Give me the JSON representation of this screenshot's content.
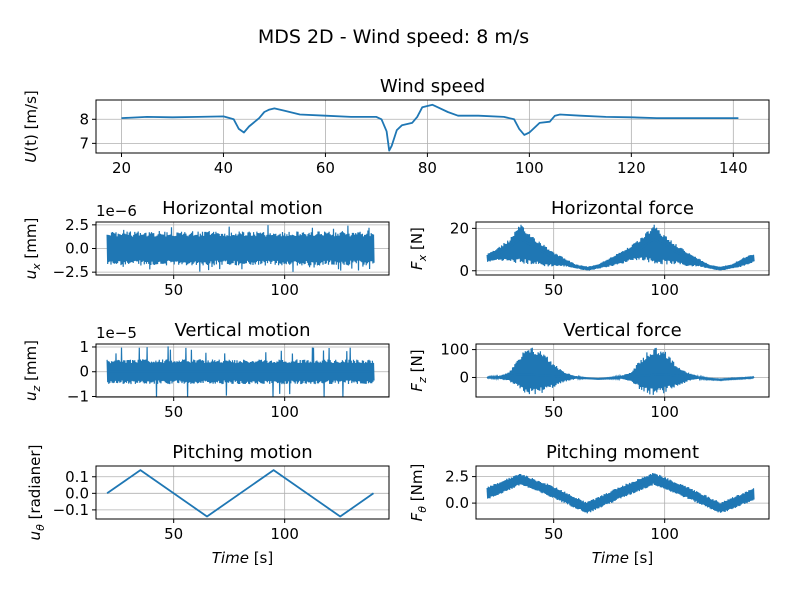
{
  "suptitle": "MDS 2D - Wind speed: 8 m/s",
  "colors": {
    "line": "#1f77b4",
    "grid": "#b0b0b0"
  },
  "chart_data": [
    {
      "id": "wind",
      "type": "line",
      "title": "Wind speed",
      "ylabel": "U(t) [m/s]",
      "xlabel": "",
      "xlim": [
        15,
        147
      ],
      "ylim": [
        6.6,
        8.8
      ],
      "xticks": [
        20,
        40,
        60,
        80,
        100,
        120,
        140
      ],
      "yticks": [
        7,
        8
      ],
      "ytick_labels": [
        "7",
        "8"
      ],
      "grid": true,
      "series": [
        {
          "x": [
            20,
            25,
            30,
            35,
            40,
            42,
            43,
            44,
            45,
            47,
            48,
            49,
            50,
            52,
            55,
            60,
            65,
            68,
            70,
            71,
            72,
            72.5,
            73,
            74,
            75,
            77,
            78,
            79,
            80,
            81,
            82,
            84,
            86,
            90,
            95,
            97,
            98,
            99,
            100,
            102,
            104,
            105,
            106,
            110,
            115,
            120,
            125,
            130,
            135,
            141
          ],
          "y": [
            8.05,
            8.1,
            8.08,
            8.1,
            8.12,
            8.0,
            7.6,
            7.45,
            7.7,
            8.05,
            8.3,
            8.4,
            8.45,
            8.35,
            8.2,
            8.15,
            8.1,
            8.1,
            8.1,
            8.0,
            7.5,
            6.7,
            6.9,
            7.55,
            7.75,
            7.85,
            8.1,
            8.5,
            8.55,
            8.6,
            8.5,
            8.3,
            8.15,
            8.15,
            8.1,
            8.0,
            7.6,
            7.35,
            7.45,
            7.85,
            7.9,
            8.15,
            8.2,
            8.15,
            8.1,
            8.08,
            8.05,
            8.05,
            8.05,
            8.05
          ]
        }
      ]
    },
    {
      "id": "ux",
      "type": "line",
      "title": "Horizontal motion",
      "ylabel": "u_x [mm]",
      "xlabel": "",
      "offset_text": "1e−6",
      "xlim": [
        15,
        147
      ],
      "ylim": [
        -2.8,
        2.8
      ],
      "xticks": [
        50,
        100
      ],
      "yticks": [
        -2.5,
        0,
        2.5
      ],
      "ytick_labels": [
        "−2.5",
        "0.0",
        "2.5"
      ],
      "grid": true,
      "series": [
        {
          "x": [
            20,
            140
          ],
          "y": [
            0,
            0
          ],
          "band": {
            "lower": [
              -1.8,
              -1.8
            ],
            "upper": [
              1.8,
              1.8
            ],
            "spike": 2.5,
            "n": 240
          }
        }
      ]
    },
    {
      "id": "fx",
      "type": "line",
      "title": "Horizontal force",
      "ylabel": "F_x [N]",
      "xlabel": "",
      "xlim": [
        15,
        147
      ],
      "ylim": [
        -2,
        23
      ],
      "xticks": [
        50,
        100
      ],
      "yticks": [
        0,
        20
      ],
      "ytick_labels": [
        "0",
        "20"
      ],
      "grid": true,
      "series": [
        {
          "x": [
            20,
            25,
            30,
            35,
            40,
            45,
            50,
            55,
            60,
            65,
            70,
            75,
            80,
            85,
            90,
            95,
            100,
            105,
            110,
            115,
            120,
            125,
            130,
            135,
            140
          ],
          "y": [
            6,
            8,
            11,
            15,
            12,
            9,
            6,
            4,
            2,
            1,
            2,
            4,
            6,
            8,
            11,
            15,
            12,
            9,
            6,
            4,
            2,
            1,
            2,
            4,
            6
          ],
          "band": {
            "lower": [
              4,
              5,
              4,
              3,
              3,
              2,
              2,
              2,
              1,
              0,
              1,
              2,
              3,
              5,
              5,
              3,
              3,
              3,
              2,
              2,
              1,
              0,
              1,
              2,
              4
            ],
            "upper": [
              8,
              11,
              15,
              22,
              17,
              13,
              9,
              6,
              3,
              2,
              3,
              6,
              9,
              12,
              16,
              22,
              17,
              13,
              9,
              6,
              3,
              2,
              3,
              6,
              8
            ],
            "n": 220
          }
        }
      ]
    },
    {
      "id": "uz",
      "type": "line",
      "title": "Vertical motion",
      "ylabel": "u_z [mm]",
      "xlabel": "",
      "offset_text": "1e−5",
      "xlim": [
        15,
        147
      ],
      "ylim": [
        -1.02,
        1.12
      ],
      "xticks": [
        50,
        100
      ],
      "yticks": [
        -1,
        0,
        1
      ],
      "ytick_labels": [
        "−1",
        "0",
        "1"
      ],
      "grid": true,
      "series": [
        {
          "x": [
            20,
            140
          ],
          "y": [
            0,
            0
          ],
          "band": {
            "lower": [
              -0.5,
              -0.5
            ],
            "upper": [
              0.5,
              0.5
            ],
            "spike": 1.05,
            "n": 240
          }
        }
      ]
    },
    {
      "id": "fz",
      "type": "line",
      "title": "Vertical force",
      "ylabel": "F_z [N]",
      "xlabel": "",
      "xlim": [
        15,
        147
      ],
      "ylim": [
        -70,
        120
      ],
      "xticks": [
        50,
        100
      ],
      "yticks": [
        0,
        100
      ],
      "ytick_labels": [
        "0",
        "100"
      ],
      "grid": true,
      "series": [
        {
          "x": [
            20,
            25,
            30,
            33,
            36,
            40,
            45,
            50,
            55,
            60,
            65,
            70,
            75,
            80,
            85,
            88,
            92,
            96,
            100,
            105,
            110,
            115,
            120,
            125,
            130,
            135,
            140
          ],
          "y": [
            0,
            0,
            5,
            10,
            10,
            10,
            8,
            5,
            3,
            0,
            -3,
            -5,
            -3,
            0,
            3,
            5,
            8,
            10,
            10,
            8,
            3,
            0,
            -5,
            -8,
            -5,
            -3,
            0
          ],
          "band": {
            "lower": [
              -2,
              -5,
              -15,
              -35,
              -55,
              -65,
              -55,
              -35,
              -15,
              -5,
              -4,
              -6,
              -5,
              -5,
              -15,
              -40,
              -60,
              -65,
              -55,
              -35,
              -15,
              -5,
              -8,
              -10,
              -7,
              -5,
              -2
            ],
            "upper": [
              2,
              5,
              20,
              55,
              90,
              110,
              95,
              50,
              20,
              5,
              -2,
              -4,
              -1,
              5,
              20,
              55,
              90,
              110,
              95,
              50,
              20,
              5,
              -3,
              -6,
              -3,
              -1,
              2
            ],
            "n": 230
          }
        }
      ]
    },
    {
      "id": "utheta",
      "type": "line",
      "title": "Pitching motion",
      "ylabel": "u_θ [radianer]",
      "xlabel": "Time [s]",
      "xlim": [
        15,
        147
      ],
      "ylim": [
        -0.155,
        0.165
      ],
      "xticks": [
        50,
        100
      ],
      "yticks": [
        -0.1,
        0,
        0.1
      ],
      "ytick_labels": [
        "−0.1",
        "0.0",
        "0.1"
      ],
      "grid": true,
      "series": [
        {
          "x": [
            20,
            35,
            65,
            95,
            125,
            140
          ],
          "y": [
            0,
            0.14,
            -0.14,
            0.14,
            -0.14,
            0
          ]
        }
      ]
    },
    {
      "id": "ftheta",
      "type": "line",
      "title": "Pitching moment",
      "ylabel": "F_θ [Nm]",
      "xlabel": "Time [s]",
      "xlim": [
        15,
        147
      ],
      "ylim": [
        -1.5,
        3.5
      ],
      "xticks": [
        50,
        100
      ],
      "yticks": [
        0,
        2.5
      ],
      "ytick_labels": [
        "0.0",
        "2.5"
      ],
      "grid": true,
      "series": [
        {
          "x": [
            20,
            35,
            50,
            65,
            80,
            95,
            110,
            125,
            140
          ],
          "y": [
            1,
            2.2,
            1,
            -0.5,
            1,
            2.2,
            1,
            -0.5,
            0.8
          ],
          "band": {
            "lower": [
              0.3,
              1.7,
              0.4,
              -1.0,
              0.4,
              1.7,
              0.4,
              -1.0,
              0.2
            ],
            "upper": [
              1.6,
              2.8,
              1.6,
              0.1,
              1.6,
              2.9,
              1.6,
              0.1,
              1.4
            ],
            "n": 230
          }
        }
      ]
    }
  ]
}
